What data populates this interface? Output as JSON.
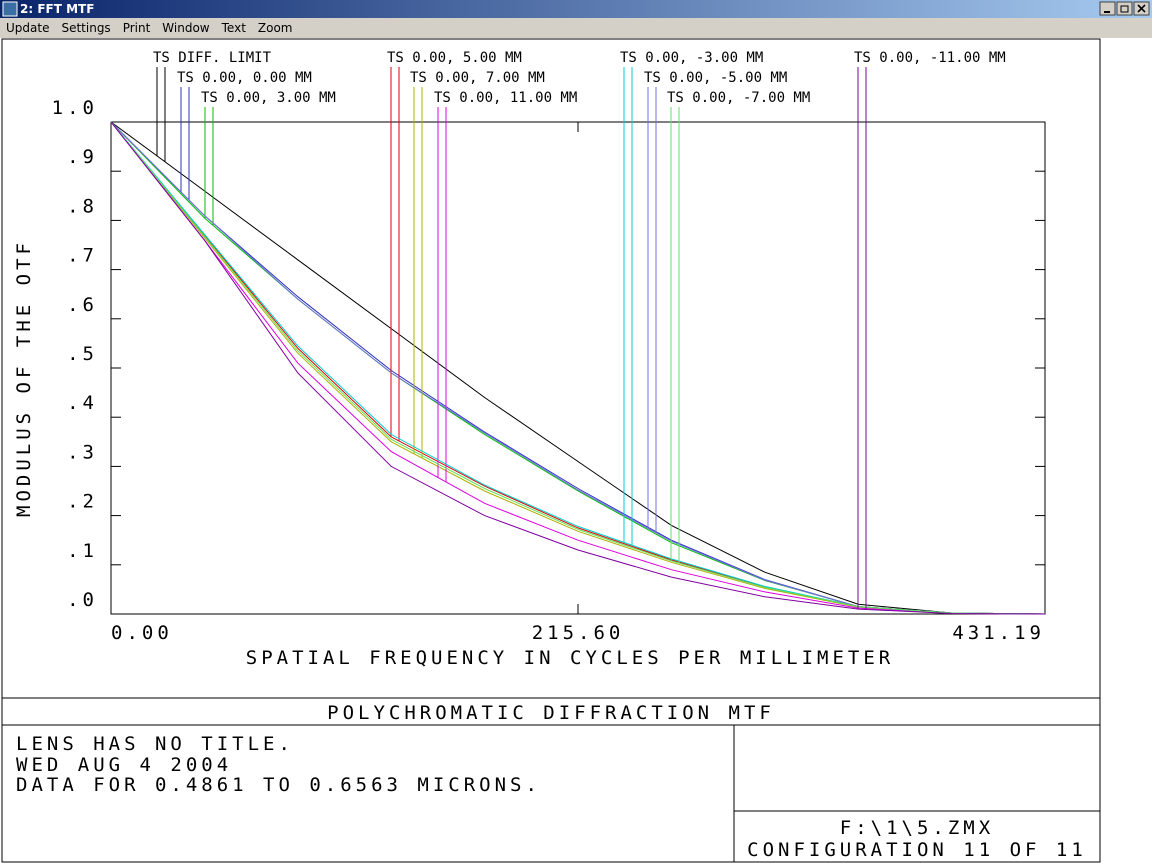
{
  "window": {
    "title": "2: FFT MTF"
  },
  "menu": {
    "items": [
      "Update",
      "Settings",
      "Print",
      "Window",
      "Text",
      "Zoom"
    ]
  },
  "chart_data": {
    "type": "line",
    "title": "POLYCHROMATIC DIFFRACTION MTF",
    "xlabel": "SPATIAL FREQUENCY IN CYCLES PER MILLIMETER",
    "ylabel": "MODULUS OF THE OTF",
    "x": [
      0,
      43.12,
      86.24,
      129.36,
      172.48,
      215.6,
      258.71,
      301.83,
      344.95,
      388.07,
      431.19
    ],
    "xlim": [
      0,
      431.19
    ],
    "xticks": [
      {
        "value": 0,
        "label": "0.00"
      },
      {
        "value": 215.6,
        "label": "215.60"
      },
      431.19
    ],
    "ylim": [
      0,
      1
    ],
    "yticks": [
      {
        "value": 0,
        "label": ".0"
      },
      {
        "value": 0.1,
        "label": ".1"
      },
      {
        "value": 0.2,
        "label": ".2"
      },
      {
        "value": 0.3,
        "label": ".3"
      },
      {
        "value": 0.4,
        "label": ".4"
      },
      {
        "value": 0.5,
        "label": ".5"
      },
      {
        "value": 0.6,
        "label": ".6"
      },
      {
        "value": 0.7,
        "label": ".7"
      },
      {
        "value": 0.8,
        "label": ".8"
      },
      {
        "value": 0.9,
        "label": ".9"
      },
      {
        "value": 1,
        "label": "1.0"
      }
    ],
    "series": [
      {
        "name": "TS DIFF. LIMIT",
        "color": "#000000",
        "values": [
          1.0,
          0.86,
          0.72,
          0.58,
          0.44,
          0.31,
          0.18,
          0.085,
          0.02,
          0.002,
          0
        ]
      },
      {
        "name": "TS 0.00, 0.00 MM",
        "color": "#3030c0",
        "values": [
          1.0,
          0.81,
          0.645,
          0.495,
          0.37,
          0.255,
          0.15,
          0.07,
          0.015,
          0.002,
          0
        ]
      },
      {
        "name": "TS 0.00, 3.00 MM",
        "color": "#00c000",
        "values": [
          1.0,
          0.805,
          0.64,
          0.49,
          0.365,
          0.25,
          0.145,
          0.068,
          0.015,
          0.002,
          0
        ]
      },
      {
        "name": "TS 0.00, 5.00 MM",
        "color": "#e00000",
        "values": [
          1.0,
          0.77,
          0.54,
          0.36,
          0.26,
          0.175,
          0.11,
          0.055,
          0.015,
          0.002,
          0
        ]
      },
      {
        "name": "TS 0.00, 7.00 MM",
        "color": "#b0b000",
        "values": [
          1.0,
          0.765,
          0.53,
          0.35,
          0.25,
          0.168,
          0.105,
          0.052,
          0.014,
          0.002,
          0
        ]
      },
      {
        "name": "TS 0.00, 11.00 MM",
        "color": "#e000e0",
        "values": [
          1.0,
          0.76,
          0.51,
          0.33,
          0.225,
          0.15,
          0.09,
          0.045,
          0.012,
          0.001,
          0
        ]
      },
      {
        "name": "TS 0.00, -3.00 MM",
        "color": "#00d0d0",
        "values": [
          1.0,
          0.772,
          0.545,
          0.365,
          0.262,
          0.178,
          0.112,
          0.056,
          0.015,
          0.002,
          0
        ]
      },
      {
        "name": "TS 0.00, -5.00 MM",
        "color": "#7070e0",
        "values": [
          1.0,
          0.81,
          0.64,
          0.49,
          0.368,
          0.252,
          0.148,
          0.069,
          0.015,
          0.002,
          0
        ]
      },
      {
        "name": "TS 0.00, -7.00 MM",
        "color": "#60e060",
        "values": [
          1.0,
          0.768,
          0.535,
          0.355,
          0.255,
          0.172,
          0.108,
          0.054,
          0.015,
          0.002,
          0
        ]
      },
      {
        "name": "TS 0.00, -11.00 MM",
        "color": "#8000a0",
        "values": [
          1.0,
          0.76,
          0.49,
          0.3,
          0.2,
          0.13,
          0.075,
          0.035,
          0.01,
          0.001,
          0
        ]
      }
    ]
  },
  "footer": {
    "lines": [
      "LENS HAS NO TITLE.",
      "WED AUG 4 2004",
      "DATA FOR 0.4861 TO 0.6563 MICRONS."
    ],
    "file": "F:\\1\\5.ZMX",
    "configuration": "CONFIGURATION 11 OF 11"
  }
}
